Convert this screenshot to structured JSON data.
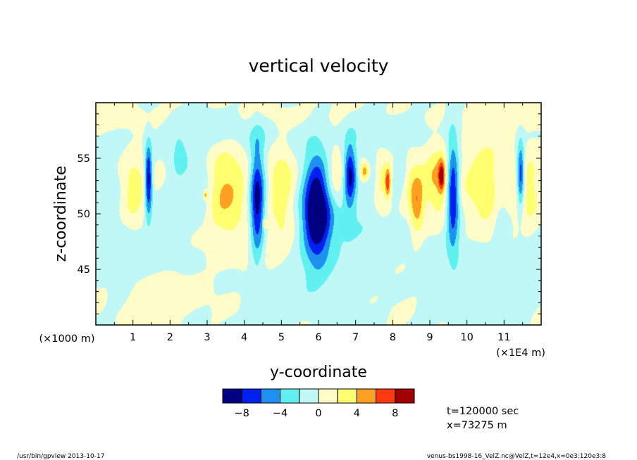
{
  "chart_data": {
    "type": "heatmap",
    "title": "vertical velocity",
    "xlabel": "y-coordinate",
    "ylabel": "z-coordinate",
    "x_unit_left": "(×1000 m)",
    "x_unit_right": "(×1E4 m)",
    "xlim": [
      0,
      12
    ],
    "ylim": [
      40,
      60
    ],
    "x_ticks": [
      1,
      2,
      3,
      4,
      5,
      6,
      7,
      8,
      9,
      10,
      11
    ],
    "y_ticks": [
      45,
      50,
      55
    ],
    "colorbar": {
      "levels": [
        -10,
        -8,
        -6,
        -4,
        -2,
        0,
        2,
        4,
        6,
        8,
        10
      ],
      "tick_labels": [
        -8,
        -4,
        0,
        4,
        8
      ],
      "colors": [
        "#000080",
        "#0020f0",
        "#1e90f0",
        "#60f0f0",
        "#c0f8f8",
        "#fffcc8",
        "#ffff70",
        "#ffa020",
        "#ff3810",
        "#a00000"
      ]
    },
    "blobs": [
      {
        "x": 1.42,
        "z": 53.0,
        "sx": 0.07,
        "sz": 2.2,
        "a": -9.5
      },
      {
        "x": 2.25,
        "z": 55.0,
        "sx": 0.18,
        "sz": 1.5,
        "a": -2.6
      },
      {
        "x": 2.85,
        "z": 52.2,
        "sx": 0.22,
        "sz": 2.0,
        "a": -3.0
      },
      {
        "x": 4.35,
        "z": 51.0,
        "sx": 0.14,
        "sz": 3.6,
        "a": -9.5
      },
      {
        "x": 5.95,
        "z": 50.5,
        "sx": 0.26,
        "sz": 3.3,
        "a": -11.0
      },
      {
        "x": 6.85,
        "z": 53.5,
        "sx": 0.12,
        "sz": 2.0,
        "a": -8.5
      },
      {
        "x": 7.45,
        "z": 53.2,
        "sx": 0.16,
        "sz": 1.6,
        "a": -3.0
      },
      {
        "x": 8.25,
        "z": 54.0,
        "sx": 0.15,
        "sz": 1.3,
        "a": -2.6
      },
      {
        "x": 9.62,
        "z": 52.0,
        "sx": 0.12,
        "sz": 3.3,
        "a": -9.5
      },
      {
        "x": 11.45,
        "z": 53.5,
        "sx": 0.07,
        "sz": 2.0,
        "a": -8.0
      },
      {
        "x": 10.9,
        "z": 51.5,
        "sx": 0.16,
        "sz": 3.0,
        "a": -2.4
      },
      {
        "x": 6.5,
        "z": 48.5,
        "sx": 0.8,
        "sz": 2.5,
        "a": -2.2
      },
      {
        "x": 1.7,
        "z": 47.0,
        "sx": 1.0,
        "sz": 2.0,
        "a": -1.6
      },
      {
        "x": 5.4,
        "z": 43.5,
        "sx": 1.5,
        "sz": 2.0,
        "a": -1.4
      },
      {
        "x": 9.5,
        "z": 45.0,
        "sx": 2.0,
        "sz": 3.0,
        "a": -1.5
      },
      {
        "x": 3.3,
        "z": 57.5,
        "sx": 1.6,
        "sz": 1.2,
        "a": -1.6
      },
      {
        "x": 7.8,
        "z": 57.5,
        "sx": 2.0,
        "sz": 1.3,
        "a": -1.3
      },
      {
        "x": 0.4,
        "z": 50.0,
        "sx": 0.35,
        "sz": 5.0,
        "a": -1.4
      },
      {
        "x": 3.5,
        "z": 52.0,
        "sx": 0.42,
        "sz": 2.8,
        "a": 4.2
      },
      {
        "x": 1.0,
        "z": 52.0,
        "sx": 0.26,
        "sz": 2.5,
        "a": 3.2
      },
      {
        "x": 5.0,
        "z": 52.5,
        "sx": 0.24,
        "sz": 2.8,
        "a": 3.6
      },
      {
        "x": 6.45,
        "z": 53.5,
        "sx": 0.2,
        "sz": 2.0,
        "a": 2.8
      },
      {
        "x": 7.25,
        "z": 53.8,
        "sx": 0.1,
        "sz": 0.6,
        "a": 6.5
      },
      {
        "x": 7.65,
        "z": 52.8,
        "sx": 0.18,
        "sz": 2.0,
        "a": 3.2
      },
      {
        "x": 7.87,
        "z": 52.8,
        "sx": 0.05,
        "sz": 0.9,
        "a": 6.8
      },
      {
        "x": 8.65,
        "z": 51.0,
        "sx": 0.13,
        "sz": 2.0,
        "a": 5.5
      },
      {
        "x": 9.2,
        "z": 53.2,
        "sx": 0.3,
        "sz": 2.5,
        "a": 4.2
      },
      {
        "x": 9.32,
        "z": 53.4,
        "sx": 0.06,
        "sz": 0.9,
        "a": 7.0
      },
      {
        "x": 10.55,
        "z": 52.5,
        "sx": 0.42,
        "sz": 3.0,
        "a": 4.2
      },
      {
        "x": 11.7,
        "z": 52.0,
        "sx": 0.2,
        "sz": 2.5,
        "a": 2.6
      },
      {
        "x": 8.4,
        "z": 53.0,
        "sx": 0.14,
        "sz": 1.7,
        "a": 2.5
      },
      {
        "x": 2.95,
        "z": 51.7,
        "sx": 0.04,
        "sz": 0.3,
        "a": 5.5
      },
      {
        "x": 4.55,
        "z": 49.1,
        "sx": 0.03,
        "sz": 0.3,
        "a": 5.0
      },
      {
        "x": 4.4,
        "z": 47.0,
        "sx": 1.3,
        "sz": 1.8,
        "a": 1.4
      },
      {
        "x": 8.0,
        "z": 44.0,
        "sx": 1.5,
        "sz": 2.0,
        "a": 1.3
      },
      {
        "x": 2.0,
        "z": 43.0,
        "sx": 1.2,
        "sz": 1.5,
        "a": 1.2
      },
      {
        "x": 0.5,
        "z": 58.5,
        "sx": 1.0,
        "sz": 1.0,
        "a": 1.3
      },
      {
        "x": 5.5,
        "z": 58.5,
        "sx": 1.4,
        "sz": 1.0,
        "a": 1.2
      },
      {
        "x": 11.0,
        "z": 58.8,
        "sx": 1.2,
        "sz": 1.0,
        "a": 1.2
      }
    ]
  },
  "info": {
    "time": "t=120000 sec",
    "position": "x=73275 m"
  },
  "footer": {
    "left": "/usr/bin/gpview  2013-10-17",
    "right": "venus-bs1998-16_VelZ.nc@VelZ,t=12e4,x=0e3:120e3:8"
  }
}
